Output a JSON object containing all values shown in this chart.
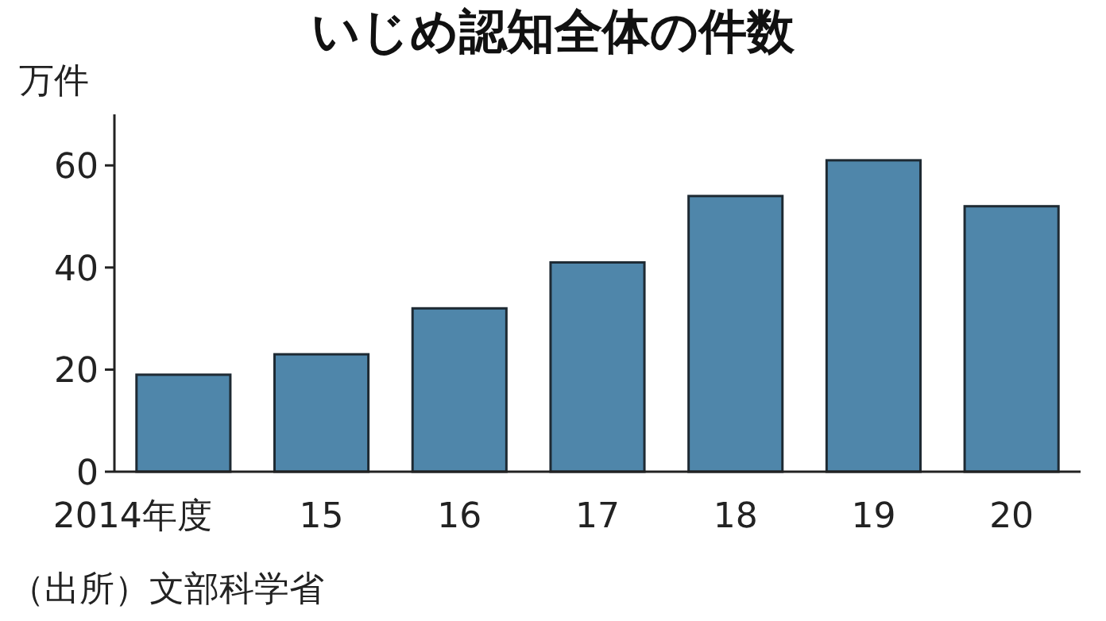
{
  "chart_data": {
    "type": "bar",
    "title": "いじめ認知全体の件数",
    "ylabel": "万件",
    "categories": [
      "2014年度",
      "15",
      "16",
      "17",
      "18",
      "19",
      "20"
    ],
    "values": [
      19,
      23,
      32,
      41,
      54,
      61,
      52
    ],
    "color": "#4f86aa",
    "ylim": [
      0,
      70
    ],
    "yticks": [
      0,
      20,
      40,
      60
    ],
    "grid": false,
    "annotations": [
      "（出所）文部科学省"
    ]
  }
}
